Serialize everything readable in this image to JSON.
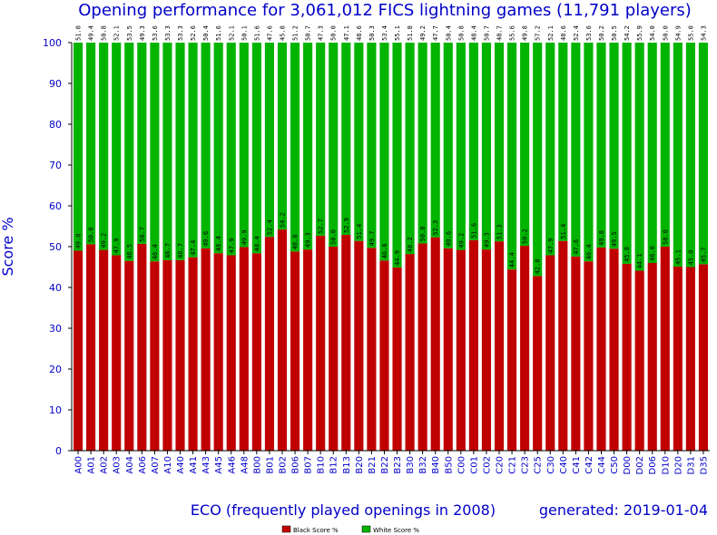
{
  "chart_data": {
    "type": "bar",
    "stacked": true,
    "title": "Opening performance for 3,061,012 FICS lightning games (11,791 players)",
    "xlabel": "ECO (frequently played openings in 2008)",
    "ylabel": "Score %",
    "ylim": [
      0,
      100
    ],
    "yticks": [
      "0",
      "10",
      "20",
      "30",
      "40",
      "50",
      "60",
      "70",
      "80",
      "90",
      "100"
    ],
    "grid": false,
    "categories": [
      "A00",
      "A01",
      "A02",
      "A03",
      "A04",
      "A06",
      "A07",
      "A10",
      "A40",
      "A41",
      "A43",
      "A45",
      "A46",
      "A48",
      "B00",
      "B01",
      "B02",
      "B06",
      "B07",
      "B10",
      "B12",
      "B13",
      "B20",
      "B21",
      "B22",
      "B23",
      "B30",
      "B32",
      "B40",
      "B50",
      "C00",
      "C01",
      "C02",
      "C20",
      "C21",
      "C23",
      "C25",
      "C30",
      "C40",
      "C41",
      "C42",
      "C44",
      "C50",
      "D00",
      "D02",
      "D06",
      "D10",
      "D20",
      "D31",
      "D35"
    ],
    "series": [
      {
        "name": "Black Score %",
        "color": "#c00000",
        "values": [
          49.0,
          50.6,
          49.2,
          47.9,
          46.5,
          50.7,
          46.4,
          46.7,
          46.7,
          47.4,
          49.6,
          48.4,
          47.9,
          49.9,
          48.4,
          52.4,
          54.2,
          48.8,
          49.3,
          52.7,
          50.0,
          52.9,
          51.4,
          49.7,
          46.6,
          44.9,
          48.2,
          50.8,
          52.3,
          49.6,
          49.2,
          51.6,
          49.3,
          51.3,
          44.4,
          50.2,
          42.8,
          47.9,
          51.4,
          47.6,
          46.4,
          49.8,
          49.5,
          45.8,
          44.1,
          46.0,
          50.0,
          45.1,
          45.0,
          45.7
        ]
      },
      {
        "name": "White Score %",
        "color": "#00b400",
        "values": [
          51.0,
          49.4,
          50.8,
          52.1,
          53.5,
          49.3,
          53.6,
          53.3,
          53.3,
          52.6,
          50.4,
          51.6,
          52.1,
          50.1,
          51.6,
          47.6,
          45.8,
          51.2,
          50.7,
          47.3,
          50.0,
          47.1,
          48.6,
          50.3,
          53.4,
          55.1,
          51.8,
          49.2,
          47.7,
          50.4,
          50.8,
          48.4,
          50.7,
          48.7,
          55.6,
          49.8,
          57.2,
          52.1,
          48.6,
          52.4,
          53.6,
          50.2,
          50.5,
          54.2,
          55.9,
          54.0,
          50.0,
          54.9,
          55.0,
          54.3
        ]
      }
    ],
    "footer_note": "generated: 2019-01-04",
    "legend": [
      "Black Score %",
      "White Score %"
    ],
    "legend_position": "bottom-center"
  }
}
